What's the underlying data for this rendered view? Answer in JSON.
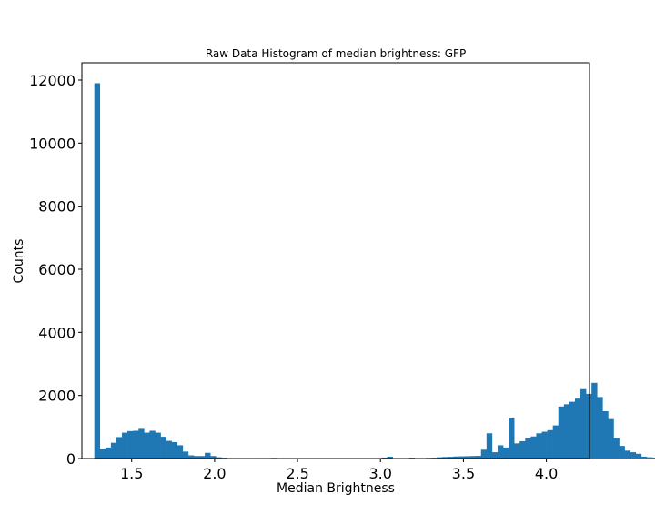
{
  "chart_data": {
    "type": "bar",
    "title": "Raw Data Histogram of median brightness: GFP",
    "xlabel": "Median Brightness",
    "ylabel": "Counts",
    "xlim": [
      1.2,
      4.26
    ],
    "ylim": [
      0,
      12000
    ],
    "xticks": [
      1.5,
      2.0,
      2.5,
      3.0,
      3.5,
      4.0
    ],
    "xtick_labels": [
      "1.5",
      "2.0",
      "2.5",
      "3.0",
      "3.5",
      "4.0"
    ],
    "yticks": [
      0,
      2000,
      4000,
      6000,
      8000,
      10000,
      12000
    ],
    "ytick_labels": [
      "0",
      "2000",
      "4000",
      "6000",
      "8000",
      "10000",
      "12000"
    ],
    "grid": false,
    "color": "#1f77b4",
    "bin_start": 1.275,
    "bin_width": 0.0333,
    "values": [
      11900,
      290,
      350,
      500,
      680,
      820,
      870,
      880,
      940,
      820,
      880,
      820,
      690,
      560,
      520,
      420,
      220,
      100,
      80,
      80,
      180,
      80,
      40,
      25,
      15,
      15,
      10,
      10,
      0,
      0,
      15,
      15,
      20,
      0,
      15,
      10,
      0,
      0,
      0,
      0,
      0,
      0,
      0,
      0,
      0,
      0,
      0,
      0,
      0,
      0,
      0,
      15,
      30,
      60,
      10,
      0,
      0,
      25,
      0,
      15,
      20,
      25,
      40,
      50,
      55,
      65,
      70,
      75,
      80,
      85,
      280,
      800,
      200,
      420,
      350,
      1300,
      480,
      550,
      650,
      700,
      800,
      850,
      900,
      1050,
      1650,
      1720,
      1800,
      1900,
      2200,
      2050,
      2400,
      1950,
      1500,
      1250,
      650,
      400,
      250,
      200,
      150,
      60,
      40,
      30
    ]
  }
}
